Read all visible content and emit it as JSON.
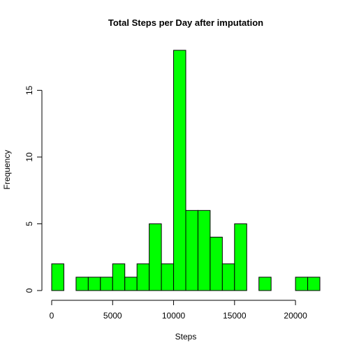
{
  "chart_data": {
    "type": "bar",
    "title": "Total Steps per Day after imputation",
    "xlabel": "Steps",
    "ylabel": "Frequency",
    "bar_color": "#00ff00",
    "bin_width": 1000,
    "xlim": [
      0,
      22000
    ],
    "ylim": [
      0,
      18
    ],
    "x_ticks": [
      0,
      5000,
      10000,
      15000,
      20000
    ],
    "y_ticks": [
      0,
      5,
      10,
      15
    ],
    "bins": [
      {
        "start": 0,
        "end": 1000,
        "count": 2
      },
      {
        "start": 1000,
        "end": 2000,
        "count": 0
      },
      {
        "start": 2000,
        "end": 3000,
        "count": 1
      },
      {
        "start": 3000,
        "end": 4000,
        "count": 1
      },
      {
        "start": 4000,
        "end": 5000,
        "count": 1
      },
      {
        "start": 5000,
        "end": 6000,
        "count": 2
      },
      {
        "start": 6000,
        "end": 7000,
        "count": 1
      },
      {
        "start": 7000,
        "end": 8000,
        "count": 2
      },
      {
        "start": 8000,
        "end": 9000,
        "count": 5
      },
      {
        "start": 9000,
        "end": 10000,
        "count": 2
      },
      {
        "start": 10000,
        "end": 11000,
        "count": 18
      },
      {
        "start": 11000,
        "end": 12000,
        "count": 6
      },
      {
        "start": 12000,
        "end": 13000,
        "count": 6
      },
      {
        "start": 13000,
        "end": 14000,
        "count": 4
      },
      {
        "start": 14000,
        "end": 15000,
        "count": 2
      },
      {
        "start": 15000,
        "end": 16000,
        "count": 5
      },
      {
        "start": 16000,
        "end": 17000,
        "count": 0
      },
      {
        "start": 17000,
        "end": 18000,
        "count": 1
      },
      {
        "start": 18000,
        "end": 19000,
        "count": 0
      },
      {
        "start": 19000,
        "end": 20000,
        "count": 0
      },
      {
        "start": 20000,
        "end": 21000,
        "count": 1
      },
      {
        "start": 21000,
        "end": 22000,
        "count": 1
      }
    ]
  }
}
